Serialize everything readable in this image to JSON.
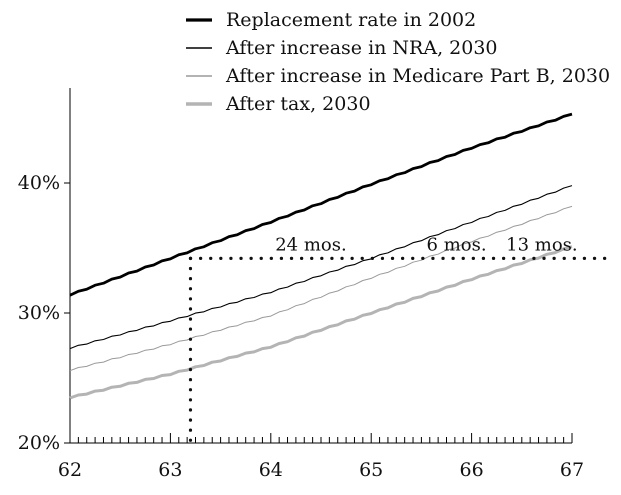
{
  "chart_data": {
    "type": "line",
    "title": "",
    "xlabel": "",
    "ylabel": "",
    "xlim": [
      62,
      67
    ],
    "ylim": [
      20,
      50
    ],
    "x_ticks": [
      "62",
      "63",
      "64",
      "65",
      "66",
      "67"
    ],
    "y_ticks": [
      "20%",
      "30%",
      "40%"
    ],
    "x": [
      62,
      63,
      64,
      65,
      66,
      67
    ],
    "series": [
      {
        "name": "Replacement rate in 2002",
        "values": [
          31.4,
          34.2,
          37.0,
          39.9,
          42.7,
          45.3
        ],
        "color": "#000000",
        "width": 2.8
      },
      {
        "name": "After increase in NRA, 2030",
        "values": [
          27.3,
          29.4,
          31.6,
          34.2,
          37.0,
          39.8
        ],
        "color": "#000000",
        "width": 1.1
      },
      {
        "name": "After increase in Medicare Part B, 2030",
        "values": [
          25.6,
          27.6,
          29.8,
          32.7,
          35.5,
          38.2
        ],
        "color": "#9a9a9a",
        "width": 1.0
      },
      {
        "name": "After tax, 2030",
        "values": [
          23.5,
          25.3,
          27.4,
          30.0,
          32.6,
          35.1
        ],
        "color": "#b4b4b4",
        "width": 3.0
      }
    ],
    "reference_line_y": 34.2,
    "reference_line_x": 63.2,
    "annotations": [
      {
        "text": "24 mos.",
        "x": 64.4
      },
      {
        "text": "6 mos.",
        "x": 65.85
      },
      {
        "text": "13 mos.",
        "x": 66.7
      }
    ],
    "legend_position": "top"
  }
}
